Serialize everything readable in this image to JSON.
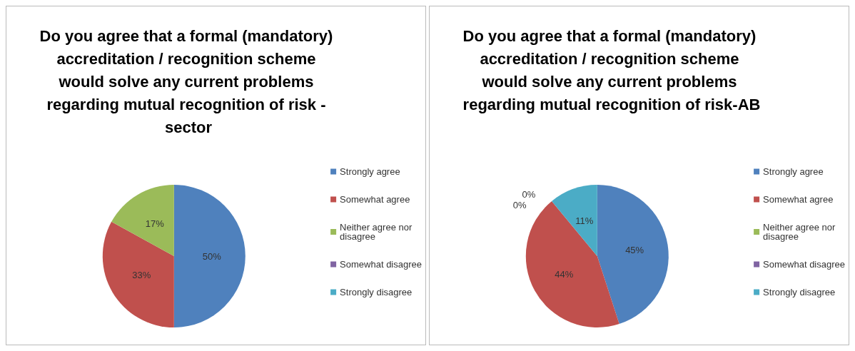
{
  "chart_data": [
    {
      "type": "pie",
      "title": "Do you agree that a formal (mandatory) accreditation / recognition scheme would solve any current problems regarding mutual recognition of risk - sector",
      "categories": [
        "Strongly agree",
        "Somewhat agree",
        "Neither agree nor disagree",
        "Somewhat disagree",
        "Strongly disagree"
      ],
      "values": [
        50,
        33,
        17,
        0,
        0
      ],
      "value_labels": [
        "50%",
        "33%",
        "17%",
        null,
        null
      ],
      "colors": [
        "#4f81bd",
        "#c0504d",
        "#9bbb59",
        "#8064a2",
        "#4bacc6"
      ],
      "legend": "right"
    },
    {
      "type": "pie",
      "title": "Do you agree that a formal (mandatory) accreditation / recognition scheme would solve any current problems regarding mutual recognition of risk-AB",
      "categories": [
        "Strongly agree",
        "Somewhat agree",
        "Neither agree nor disagree",
        "Somewhat disagree",
        "Strongly disagree"
      ],
      "values": [
        45,
        44,
        0,
        0,
        11
      ],
      "value_labels": [
        "45%",
        "44%",
        "0%",
        "0%",
        "11%"
      ],
      "colors": [
        "#4f81bd",
        "#c0504d",
        "#9bbb59",
        "#8064a2",
        "#4bacc6"
      ],
      "legend": "right"
    }
  ]
}
